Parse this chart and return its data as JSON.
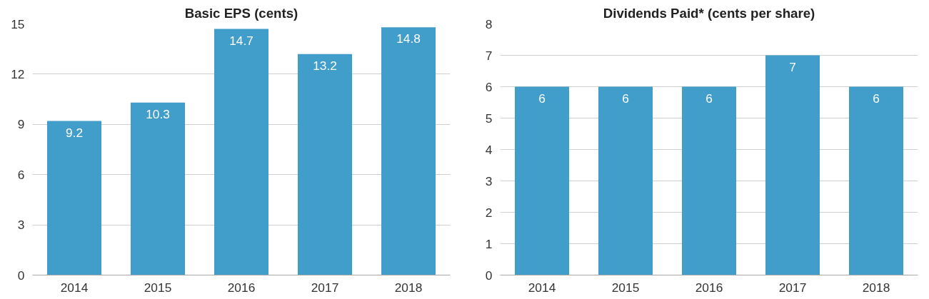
{
  "chart_data": [
    {
      "type": "bar",
      "title": "Basic EPS (cents)",
      "categories": [
        "2014",
        "2015",
        "2016",
        "2017",
        "2018"
      ],
      "values": [
        9.2,
        10.3,
        14.7,
        13.2,
        14.8
      ],
      "color": "#419dc9",
      "ylim": [
        0,
        15
      ],
      "yticks": [
        0,
        3,
        6,
        9,
        12,
        15
      ],
      "grid": "y",
      "data_labels": true
    },
    {
      "type": "bar",
      "title": "Dividends Paid* (cents per share)",
      "categories": [
        "2014",
        "2015",
        "2016",
        "2017",
        "2018"
      ],
      "values": [
        6,
        6,
        6,
        7,
        6
      ],
      "color": "#419dc9",
      "ylim": [
        0,
        8
      ],
      "yticks": [
        0,
        1,
        2,
        3,
        4,
        5,
        6,
        7,
        8
      ],
      "grid": "y",
      "data_labels": true
    }
  ]
}
